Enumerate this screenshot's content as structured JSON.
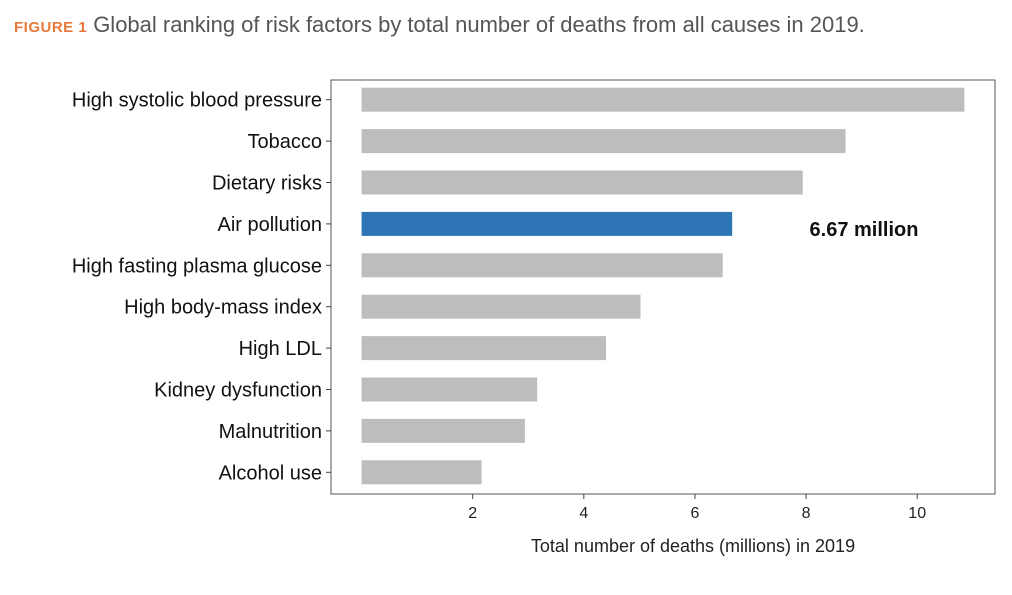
{
  "caption": {
    "figure_label": "FIGURE 1",
    "title": "Global ranking of risk factors by total number of deaths from all causes in 2019."
  },
  "colors": {
    "highlight": "#2e75b6",
    "default_bar": "#bdbdbd",
    "figure_label": "#e8783a"
  },
  "chart_data": {
    "type": "bar",
    "orientation": "horizontal",
    "categories": [
      "High systolic blood pressure",
      "Tobacco",
      "Dietary risks",
      "Air pollution",
      "High fasting plasma glucose",
      "High body-mass index",
      "High LDL",
      "Kidney dysfunction",
      "Malnutrition",
      "Alcohol use"
    ],
    "values": [
      10.85,
      8.71,
      7.94,
      6.67,
      6.5,
      5.02,
      4.4,
      3.16,
      2.94,
      2.16
    ],
    "highlight_category": "Air pollution",
    "annotation": "6.67 million",
    "xlabel": "Total number of deaths (millions) in 2019",
    "ylabel": "",
    "xticks": [
      2,
      4,
      6,
      8,
      10
    ],
    "xlim": [
      -0.55,
      11.4
    ],
    "grid": false,
    "legend": "none"
  }
}
